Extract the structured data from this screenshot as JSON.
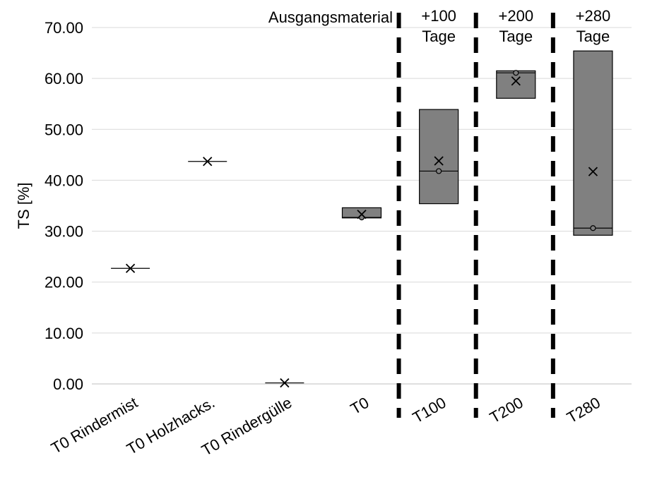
{
  "chart_data": {
    "type": "box",
    "ylabel": "TS [%]",
    "xlabel": "",
    "ylim": [
      0,
      70
    ],
    "yticks": [
      "0.00",
      "10.00",
      "20.00",
      "30.00",
      "40.00",
      "50.00",
      "60.00",
      "70.00"
    ],
    "grid": true,
    "box_color": "#808080",
    "categories": [
      "T0 Rindermist",
      "T0 Holzhacks.",
      "T0 Rindergülle",
      "T0",
      "T100",
      "T200",
      "T280"
    ],
    "boxes": [
      {
        "category": "T0 Rindermist",
        "q1": 22.7,
        "median": 22.7,
        "q3": 22.7,
        "mean": 22.7
      },
      {
        "category": "T0 Holzhacks.",
        "q1": 43.7,
        "median": 43.7,
        "q3": 43.7,
        "mean": 43.7
      },
      {
        "category": "T0 Rindergülle",
        "q1": 0.2,
        "median": 0.2,
        "q3": 0.2,
        "mean": 0.2
      },
      {
        "category": "T0",
        "q1": 32.6,
        "median": 32.7,
        "q3": 34.6,
        "mean": 33.3,
        "point": 32.7
      },
      {
        "category": "T100",
        "q1": 35.4,
        "median": 41.8,
        "q3": 53.9,
        "mean": 43.8,
        "point": 41.8
      },
      {
        "category": "T200",
        "q1": 56.1,
        "median": 61.1,
        "q3": 61.5,
        "mean": 59.5,
        "point": 61.1
      },
      {
        "category": "T280",
        "q1": 29.2,
        "median": 30.6,
        "q3": 65.4,
        "mean": 41.7,
        "point": 30.6
      }
    ],
    "annotations": [
      {
        "text": "Ausgangsmaterial",
        "lines": [
          "Ausgangsmaterial"
        ]
      },
      {
        "text": "+100 Tage",
        "lines": [
          "+100",
          "Tage"
        ]
      },
      {
        "text": "+200 Tage",
        "lines": [
          "+200",
          "Tage"
        ]
      },
      {
        "text": "+280 Tage",
        "lines": [
          "+280",
          "Tage"
        ]
      }
    ],
    "separators_after": [
      "T0",
      "T100",
      "T200"
    ]
  }
}
